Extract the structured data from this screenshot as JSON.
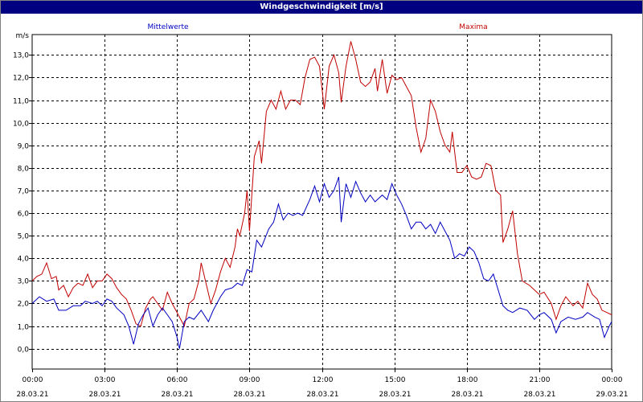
{
  "window": {
    "title": "Windgeschwindigkeit [m/s]"
  },
  "chart_data": {
    "type": "line",
    "ylabel": "m/s",
    "ylim": [
      -0.9,
      13.9
    ],
    "yticks": [
      "0,0",
      "1,0",
      "2,0",
      "3,0",
      "4,0",
      "5,0",
      "6,0",
      "7,0",
      "8,0",
      "9,0",
      "10,0",
      "11,0",
      "12,0",
      "13,0"
    ],
    "xlim": [
      0,
      24
    ],
    "xticks": [
      {
        "time": "00:00",
        "date": "28.03.21"
      },
      {
        "time": "03:00",
        "date": "28.03.21"
      },
      {
        "time": "06:00",
        "date": "28.03.21"
      },
      {
        "time": "09:00",
        "date": "28.03.21"
      },
      {
        "time": "12:00",
        "date": "28.03.21"
      },
      {
        "time": "15:00",
        "date": "28.03.21"
      },
      {
        "time": "18:00",
        "date": "28.03.21"
      },
      {
        "time": "21:00",
        "date": "28.03.21"
      },
      {
        "time": "00:00",
        "date": "29.03.21"
      }
    ],
    "grid": true,
    "series": [
      {
        "name": "Mittelwerte",
        "color": "#0000c0",
        "points": [
          [
            0.0,
            2.0
          ],
          [
            0.3,
            2.3
          ],
          [
            0.6,
            2.1
          ],
          [
            0.9,
            2.2
          ],
          [
            1.1,
            1.7
          ],
          [
            1.4,
            1.7
          ],
          [
            1.7,
            1.9
          ],
          [
            2.0,
            1.9
          ],
          [
            2.2,
            2.1
          ],
          [
            2.5,
            2.0
          ],
          [
            2.7,
            2.1
          ],
          [
            2.9,
            1.9
          ],
          [
            3.1,
            2.2
          ],
          [
            3.3,
            2.1
          ],
          [
            3.5,
            1.8
          ],
          [
            3.8,
            1.5
          ],
          [
            4.0,
            1.0
          ],
          [
            4.2,
            0.2
          ],
          [
            4.4,
            1.1
          ],
          [
            4.6,
            1.5
          ],
          [
            4.8,
            1.8
          ],
          [
            5.0,
            1.0
          ],
          [
            5.2,
            1.5
          ],
          [
            5.4,
            1.8
          ],
          [
            5.6,
            1.5
          ],
          [
            5.8,
            1.2
          ],
          [
            6.0,
            0.5
          ],
          [
            6.1,
            0.0
          ],
          [
            6.3,
            1.2
          ],
          [
            6.5,
            1.4
          ],
          [
            6.7,
            1.3
          ],
          [
            7.0,
            1.7
          ],
          [
            7.3,
            1.2
          ],
          [
            7.5,
            1.7
          ],
          [
            7.8,
            2.3
          ],
          [
            8.0,
            2.6
          ],
          [
            8.3,
            2.7
          ],
          [
            8.5,
            2.9
          ],
          [
            8.7,
            2.8
          ],
          [
            8.9,
            3.5
          ],
          [
            9.1,
            3.4
          ],
          [
            9.3,
            4.8
          ],
          [
            9.5,
            4.5
          ],
          [
            9.8,
            5.3
          ],
          [
            10.0,
            5.6
          ],
          [
            10.2,
            6.4
          ],
          [
            10.4,
            5.7
          ],
          [
            10.6,
            6.0
          ],
          [
            10.8,
            5.9
          ],
          [
            11.0,
            6.0
          ],
          [
            11.2,
            5.9
          ],
          [
            11.5,
            6.6
          ],
          [
            11.7,
            7.2
          ],
          [
            11.9,
            6.5
          ],
          [
            12.1,
            7.3
          ],
          [
            12.3,
            6.7
          ],
          [
            12.5,
            7.0
          ],
          [
            12.7,
            7.6
          ],
          [
            12.8,
            5.6
          ],
          [
            13.0,
            7.3
          ],
          [
            13.2,
            6.7
          ],
          [
            13.4,
            7.4
          ],
          [
            13.6,
            6.9
          ],
          [
            13.8,
            6.5
          ],
          [
            14.0,
            6.8
          ],
          [
            14.2,
            6.5
          ],
          [
            14.5,
            6.8
          ],
          [
            14.7,
            6.6
          ],
          [
            14.9,
            7.3
          ],
          [
            15.1,
            6.8
          ],
          [
            15.3,
            6.4
          ],
          [
            15.5,
            5.9
          ],
          [
            15.7,
            5.3
          ],
          [
            15.9,
            5.6
          ],
          [
            16.1,
            5.6
          ],
          [
            16.3,
            5.3
          ],
          [
            16.5,
            5.5
          ],
          [
            16.7,
            5.1
          ],
          [
            16.9,
            5.6
          ],
          [
            17.1,
            5.2
          ],
          [
            17.3,
            4.8
          ],
          [
            17.5,
            4.0
          ],
          [
            17.7,
            4.2
          ],
          [
            17.9,
            4.1
          ],
          [
            18.1,
            4.5
          ],
          [
            18.3,
            4.3
          ],
          [
            18.5,
            3.8
          ],
          [
            18.7,
            3.1
          ],
          [
            18.9,
            3.0
          ],
          [
            19.1,
            3.3
          ],
          [
            19.3,
            2.6
          ],
          [
            19.5,
            1.9
          ],
          [
            19.7,
            1.7
          ],
          [
            19.9,
            1.6
          ],
          [
            20.2,
            1.8
          ],
          [
            20.5,
            1.7
          ],
          [
            20.8,
            1.3
          ],
          [
            21.0,
            1.5
          ],
          [
            21.2,
            1.6
          ],
          [
            21.5,
            1.3
          ],
          [
            21.7,
            0.7
          ],
          [
            21.9,
            1.2
          ],
          [
            22.2,
            1.4
          ],
          [
            22.5,
            1.3
          ],
          [
            22.8,
            1.4
          ],
          [
            23.0,
            1.6
          ],
          [
            23.3,
            1.4
          ],
          [
            23.5,
            1.3
          ],
          [
            23.7,
            0.5
          ],
          [
            23.9,
            1.0
          ],
          [
            24.0,
            1.2
          ]
        ]
      },
      {
        "name": "Maxima",
        "color": "#c00000",
        "points": [
          [
            0.0,
            3.0
          ],
          [
            0.2,
            3.2
          ],
          [
            0.4,
            3.3
          ],
          [
            0.6,
            3.8
          ],
          [
            0.8,
            3.1
          ],
          [
            1.0,
            3.2
          ],
          [
            1.1,
            2.6
          ],
          [
            1.3,
            2.8
          ],
          [
            1.5,
            2.3
          ],
          [
            1.7,
            2.7
          ],
          [
            1.9,
            2.9
          ],
          [
            2.1,
            2.8
          ],
          [
            2.3,
            3.3
          ],
          [
            2.5,
            2.7
          ],
          [
            2.7,
            3.0
          ],
          [
            2.9,
            3.0
          ],
          [
            3.1,
            3.3
          ],
          [
            3.3,
            3.1
          ],
          [
            3.5,
            2.7
          ],
          [
            3.7,
            2.4
          ],
          [
            3.9,
            2.2
          ],
          [
            4.1,
            1.7
          ],
          [
            4.3,
            1.1
          ],
          [
            4.5,
            1.0
          ],
          [
            4.7,
            1.8
          ],
          [
            4.9,
            2.2
          ],
          [
            5.0,
            2.3
          ],
          [
            5.2,
            2.0
          ],
          [
            5.4,
            1.7
          ],
          [
            5.6,
            2.5
          ],
          [
            5.8,
            2.0
          ],
          [
            6.0,
            1.6
          ],
          [
            6.2,
            1.2
          ],
          [
            6.3,
            1.0
          ],
          [
            6.5,
            2.0
          ],
          [
            6.7,
            2.2
          ],
          [
            6.9,
            3.0
          ],
          [
            7.0,
            3.8
          ],
          [
            7.2,
            2.9
          ],
          [
            7.4,
            2.0
          ],
          [
            7.6,
            2.6
          ],
          [
            7.8,
            3.4
          ],
          [
            8.0,
            4.0
          ],
          [
            8.2,
            3.6
          ],
          [
            8.4,
            4.5
          ],
          [
            8.5,
            5.3
          ],
          [
            8.6,
            5.0
          ],
          [
            8.8,
            6.0
          ],
          [
            8.9,
            7.0
          ],
          [
            9.0,
            5.2
          ],
          [
            9.2,
            8.5
          ],
          [
            9.4,
            9.2
          ],
          [
            9.5,
            8.2
          ],
          [
            9.7,
            10.5
          ],
          [
            9.9,
            11.0
          ],
          [
            10.1,
            10.6
          ],
          [
            10.3,
            11.4
          ],
          [
            10.5,
            10.6
          ],
          [
            10.7,
            11.0
          ],
          [
            10.9,
            11.0
          ],
          [
            11.1,
            10.8
          ],
          [
            11.3,
            12.0
          ],
          [
            11.5,
            12.8
          ],
          [
            11.7,
            12.9
          ],
          [
            11.9,
            12.5
          ],
          [
            12.1,
            10.6
          ],
          [
            12.3,
            12.5
          ],
          [
            12.5,
            13.0
          ],
          [
            12.7,
            12.2
          ],
          [
            12.8,
            10.9
          ],
          [
            13.0,
            12.5
          ],
          [
            13.2,
            13.6
          ],
          [
            13.4,
            12.8
          ],
          [
            13.6,
            11.8
          ],
          [
            13.8,
            11.6
          ],
          [
            14.0,
            11.8
          ],
          [
            14.2,
            12.4
          ],
          [
            14.3,
            11.4
          ],
          [
            14.5,
            12.8
          ],
          [
            14.7,
            11.3
          ],
          [
            14.9,
            12.1
          ],
          [
            15.1,
            11.9
          ],
          [
            15.3,
            12.0
          ],
          [
            15.5,
            11.6
          ],
          [
            15.7,
            11.2
          ],
          [
            15.9,
            9.8
          ],
          [
            16.1,
            8.7
          ],
          [
            16.3,
            9.3
          ],
          [
            16.5,
            11.0
          ],
          [
            16.7,
            10.5
          ],
          [
            16.9,
            9.6
          ],
          [
            17.1,
            9.0
          ],
          [
            17.3,
            8.7
          ],
          [
            17.4,
            9.6
          ],
          [
            17.6,
            7.8
          ],
          [
            17.8,
            7.8
          ],
          [
            18.0,
            8.1
          ],
          [
            18.2,
            7.6
          ],
          [
            18.4,
            7.5
          ],
          [
            18.6,
            7.6
          ],
          [
            18.8,
            8.2
          ],
          [
            19.0,
            8.1
          ],
          [
            19.2,
            7.0
          ],
          [
            19.4,
            6.8
          ],
          [
            19.5,
            4.7
          ],
          [
            19.7,
            5.3
          ],
          [
            19.9,
            6.1
          ],
          [
            20.1,
            4.2
          ],
          [
            20.3,
            3.0
          ],
          [
            20.6,
            2.8
          ],
          [
            20.8,
            2.6
          ],
          [
            21.0,
            2.4
          ],
          [
            21.2,
            2.5
          ],
          [
            21.5,
            2.0
          ],
          [
            21.7,
            1.3
          ],
          [
            21.9,
            1.9
          ],
          [
            22.1,
            2.3
          ],
          [
            22.4,
            1.9
          ],
          [
            22.6,
            2.1
          ],
          [
            22.8,
            1.8
          ],
          [
            23.0,
            2.9
          ],
          [
            23.2,
            2.4
          ],
          [
            23.4,
            2.2
          ],
          [
            23.6,
            1.7
          ],
          [
            23.8,
            1.6
          ],
          [
            24.0,
            1.5
          ]
        ]
      }
    ]
  }
}
